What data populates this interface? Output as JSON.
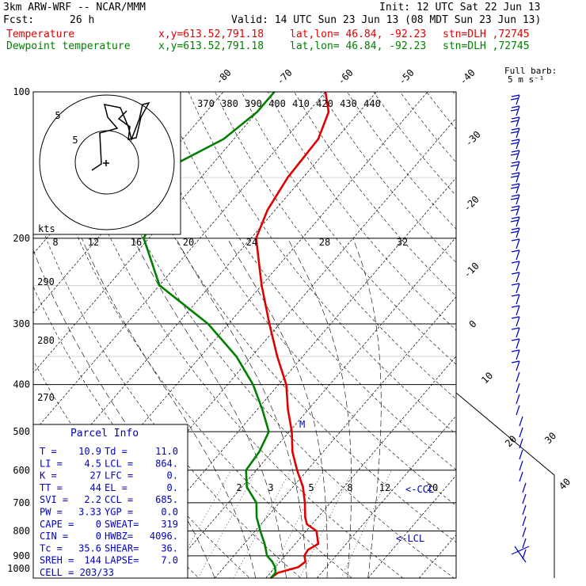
{
  "header": {
    "model": "3km ARW-WRF -- NCAR/MMM",
    "init": "Init: 12 UTC Sat 22 Jun 13",
    "fcst_label": "Fcst:",
    "fcst_value": "26 h",
    "valid": "Valid: 14 UTC Sun 23 Jun 13 (08 MDT Sun 23 Jun 13)",
    "temp_label": "Temperature",
    "dew_label": "Dewpoint temperature",
    "xy": "x,y=613.52,791.18",
    "latlon": "lat,lon= 46.84, -92.23",
    "stn": "stn=DLH ,72745"
  },
  "wind_legend": {
    "line1": "Full barb:",
    "line2": "5 m s⁻¹"
  },
  "colors": {
    "temperature": "#e00000",
    "dewpoint": "#008000",
    "wind": "#0000c0",
    "grid": "#000000"
  },
  "chart_data": {
    "type": "line",
    "subtype": "skew-T log-P sounding",
    "y_axis": {
      "label_values": [
        100,
        200,
        300,
        400,
        500,
        600,
        700,
        800,
        900,
        1000
      ],
      "unit": "hPa",
      "scale": "log"
    },
    "top_temperature_labels": [
      "-80",
      "-70",
      "-60",
      "-50",
      "-40"
    ],
    "right_temperature_labels": [
      "-30",
      "-20",
      "-10",
      "0",
      "10",
      "20",
      "30",
      "40"
    ],
    "theta_labels_top": [
      "370",
      "380",
      "390",
      "400",
      "410",
      "420",
      "430",
      "440"
    ],
    "theta_labels_left": [
      "290",
      "280",
      "270"
    ],
    "mixing_ratio_labels": [
      "2",
      "3",
      "5",
      "8",
      "12",
      "20"
    ],
    "hodograph_speed_labels": [
      "8",
      "12",
      "16",
      "20",
      "24",
      "28",
      "32"
    ],
    "hodograph_unit": "kts",
    "hodograph_ring_labels": [
      "5",
      "5"
    ],
    "annotations": {
      "m": "M",
      "ccl": "<-CCL",
      "lcl": "<-LCL"
    },
    "series": [
      {
        "name": "Temperature",
        "points": [
          [
            1000,
            10.9
          ],
          [
            975,
            11.5
          ],
          [
            950,
            14.5
          ],
          [
            925,
            15
          ],
          [
            900,
            13.8
          ],
          [
            875,
            13.5
          ],
          [
            850,
            14.5
          ],
          [
            800,
            12
          ],
          [
            775,
            9
          ],
          [
            750,
            7.5
          ],
          [
            700,
            5
          ],
          [
            650,
            2
          ],
          [
            600,
            -2
          ],
          [
            550,
            -6
          ],
          [
            500,
            -9.5
          ],
          [
            450,
            -14
          ],
          [
            400,
            -18.5
          ],
          [
            350,
            -25
          ],
          [
            300,
            -32
          ],
          [
            250,
            -40
          ],
          [
            200,
            -49
          ],
          [
            175,
            -51.5
          ],
          [
            150,
            -53
          ],
          [
            125,
            -53.5
          ],
          [
            110,
            -56
          ],
          [
            100,
            -60
          ]
        ]
      },
      {
        "name": "Dewpoint temperature",
        "points": [
          [
            1000,
            11
          ],
          [
            975,
            11
          ],
          [
            950,
            10
          ],
          [
            925,
            8.5
          ],
          [
            900,
            6.5
          ],
          [
            850,
            4
          ],
          [
            800,
            1
          ],
          [
            750,
            -2
          ],
          [
            700,
            -4.5
          ],
          [
            650,
            -9
          ],
          [
            600,
            -12
          ],
          [
            550,
            -12.5
          ],
          [
            500,
            -14
          ],
          [
            450,
            -19
          ],
          [
            400,
            -25
          ],
          [
            350,
            -33
          ],
          [
            300,
            -44
          ],
          [
            250,
            -60
          ],
          [
            200,
            -71
          ],
          [
            175,
            -73
          ],
          [
            160,
            -76
          ],
          [
            150,
            -77
          ],
          [
            140,
            -77
          ],
          [
            125,
            -72
          ],
          [
            110,
            -70
          ],
          [
            100,
            -70
          ]
        ]
      }
    ]
  },
  "parcel_info": {
    "title": "Parcel Info",
    "rows": [
      [
        "T  =",
        "10.9",
        "Td =",
        "11.0"
      ],
      [
        "LI =",
        "4.5",
        "LCL =",
        "864."
      ],
      [
        "K  =",
        "27",
        "LFC =",
        "0."
      ],
      [
        "TT =",
        "44",
        "EL  =",
        "0."
      ],
      [
        "SVI =",
        "2.2",
        "CCL =",
        "685."
      ],
      [
        "PW =",
        "3.33",
        "YGP =",
        "0.0"
      ],
      [
        "CAPE =",
        "0",
        "SWEAT=",
        "319"
      ],
      [
        "CIN =",
        "0",
        "HWBZ=",
        "4096."
      ],
      [
        "Tc =",
        "35.6",
        "SHEAR=",
        "36."
      ],
      [
        "SREH =",
        "144",
        "LAPSE=",
        "7.0"
      ]
    ],
    "cell": "CELL = 203/33"
  }
}
